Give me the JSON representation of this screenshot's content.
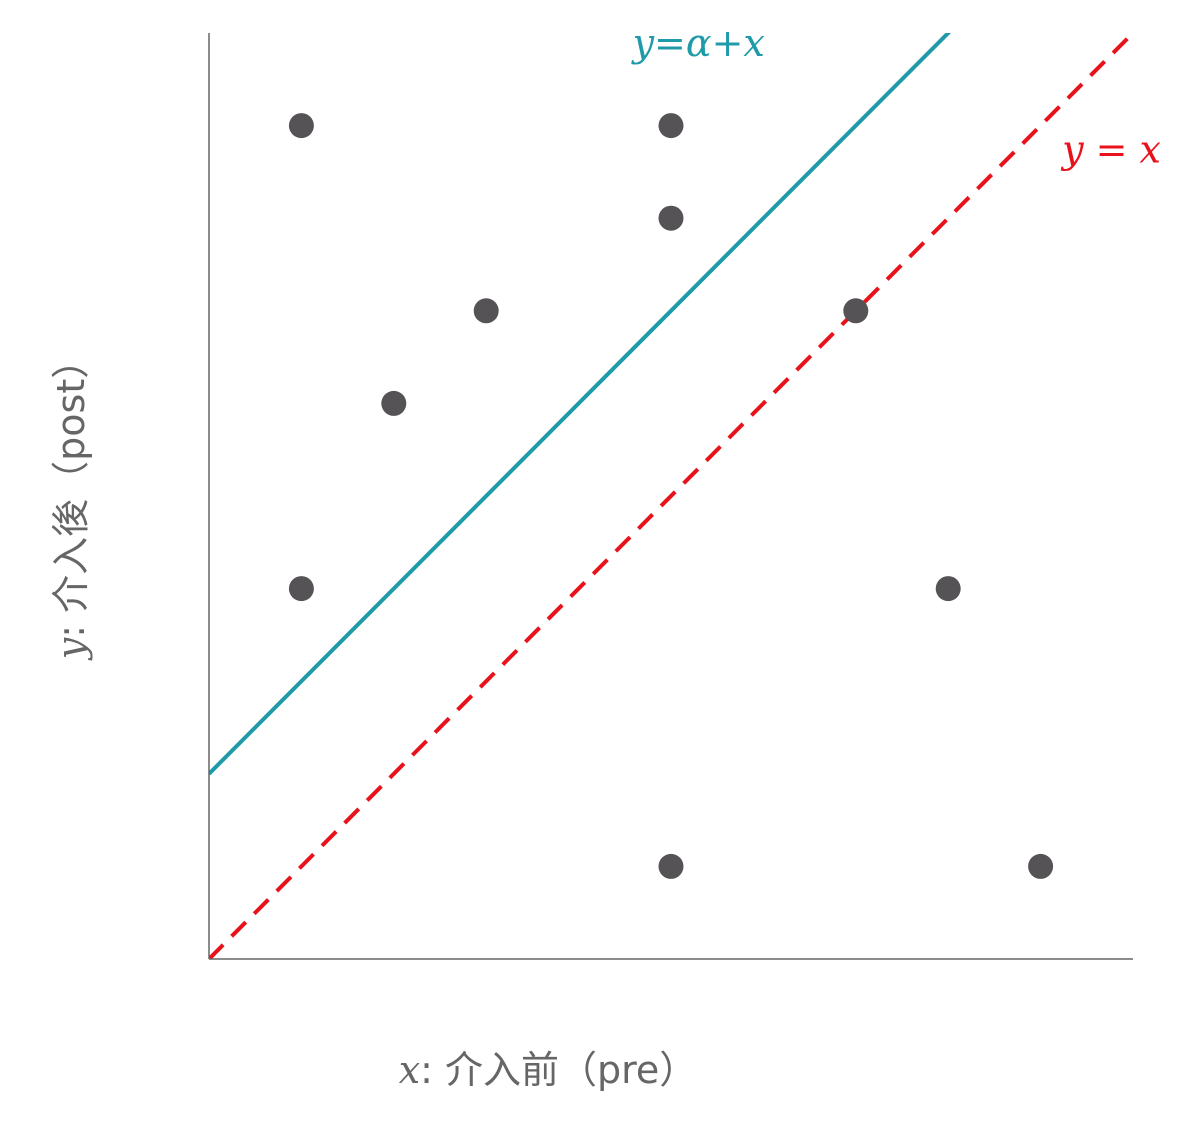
{
  "chart_data": {
    "type": "scatter",
    "title": "",
    "xlabel": {
      "var": "x",
      "rest": ": 介入前（pre）"
    },
    "ylabel": {
      "var": "y",
      "rest": ": 介入後（post）"
    },
    "xlim": [
      0,
      10
    ],
    "ylim": [
      0,
      10
    ],
    "grid": false,
    "colors": {
      "points": "#555355",
      "axes": "#666666",
      "line_alpha": "#1f9aa8",
      "line_identity": "#e8121b",
      "axis_title": "#666666"
    },
    "points": [
      {
        "x": 1,
        "y": 9
      },
      {
        "x": 5,
        "y": 9
      },
      {
        "x": 5,
        "y": 8
      },
      {
        "x": 3,
        "y": 7
      },
      {
        "x": 2,
        "y": 6
      },
      {
        "x": 7,
        "y": 7
      },
      {
        "x": 1,
        "y": 4
      },
      {
        "x": 8,
        "y": 4
      },
      {
        "x": 5,
        "y": 1
      },
      {
        "x": 9,
        "y": 1
      }
    ],
    "lines": [
      {
        "label": "y=α+x",
        "intercept": 2,
        "slope": 1,
        "style": "solid",
        "color": "#1f9aa8"
      },
      {
        "label": "y = x",
        "intercept": 0,
        "slope": 1,
        "style": "dashed",
        "color": "#e8121b"
      }
    ]
  }
}
